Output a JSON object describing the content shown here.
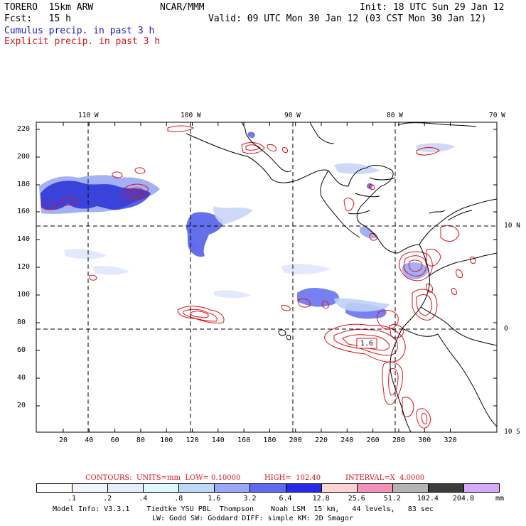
{
  "header": {
    "model": "TORERO  15km ARW",
    "org": "NCAR/MMM",
    "init": "Init: 18 UTC Sun 29 Jan 12",
    "fcst": "Fcst:   15 h",
    "valid": "Valid: 09 UTC Mon 30 Jan 12 (03 CST Mon 30 Jan 12)",
    "legend_cumulus": "Cumulus precip. in past 3 h",
    "legend_explicit": "Explicit precip. in past 3 h"
  },
  "map": {
    "lon_labels": [
      "110 W",
      "100 W",
      "90 W",
      "80 W",
      "70 W"
    ],
    "lat_labels": [
      "10 N",
      "0",
      "10 S"
    ],
    "y_ticks": [
      "220",
      "200",
      "180",
      "160",
      "140",
      "120",
      "100",
      "80",
      "60",
      "40",
      "20"
    ],
    "x_ticks": [
      "20",
      "40",
      "60",
      "80",
      "100",
      "120",
      "140",
      "160",
      "180",
      "200",
      "220",
      "240",
      "260",
      "280",
      "300",
      "320"
    ],
    "contour_label": "1.6"
  },
  "contours_line": {
    "prefix": "CONTOURS:  UNITS=mm  LOW= 0.10000",
    "high": "HIGH=  102.40",
    "interval": "INTERVAL=X  4.0000"
  },
  "colorbar": {
    "labels": [
      ".1",
      ".2",
      ".4",
      ".8",
      "1.6",
      "3.2",
      "6.4",
      "12.8",
      "25.6",
      "51.2",
      "102.4",
      "204.8"
    ],
    "unit": "mm",
    "colors": [
      "#ffffff",
      "#f1f6fe",
      "#e6eefe",
      "#dff8fd",
      "#bed8f8",
      "#99a7f6",
      "#5f6aef",
      "#2828e6",
      "#fbd3d3",
      "#f590b8",
      "#b4b4b4",
      "#3c3c3c",
      "#d6a8f6"
    ]
  },
  "footer": {
    "line1": "Model Info: V3.3.1    Tiedtke YSU PBL  Thompson    Noah LSM  15 km,   44 levels,   83 sec",
    "line2": "LW: Godd SW: Goddard DIFF: simple KM: 2D Smagor"
  }
}
